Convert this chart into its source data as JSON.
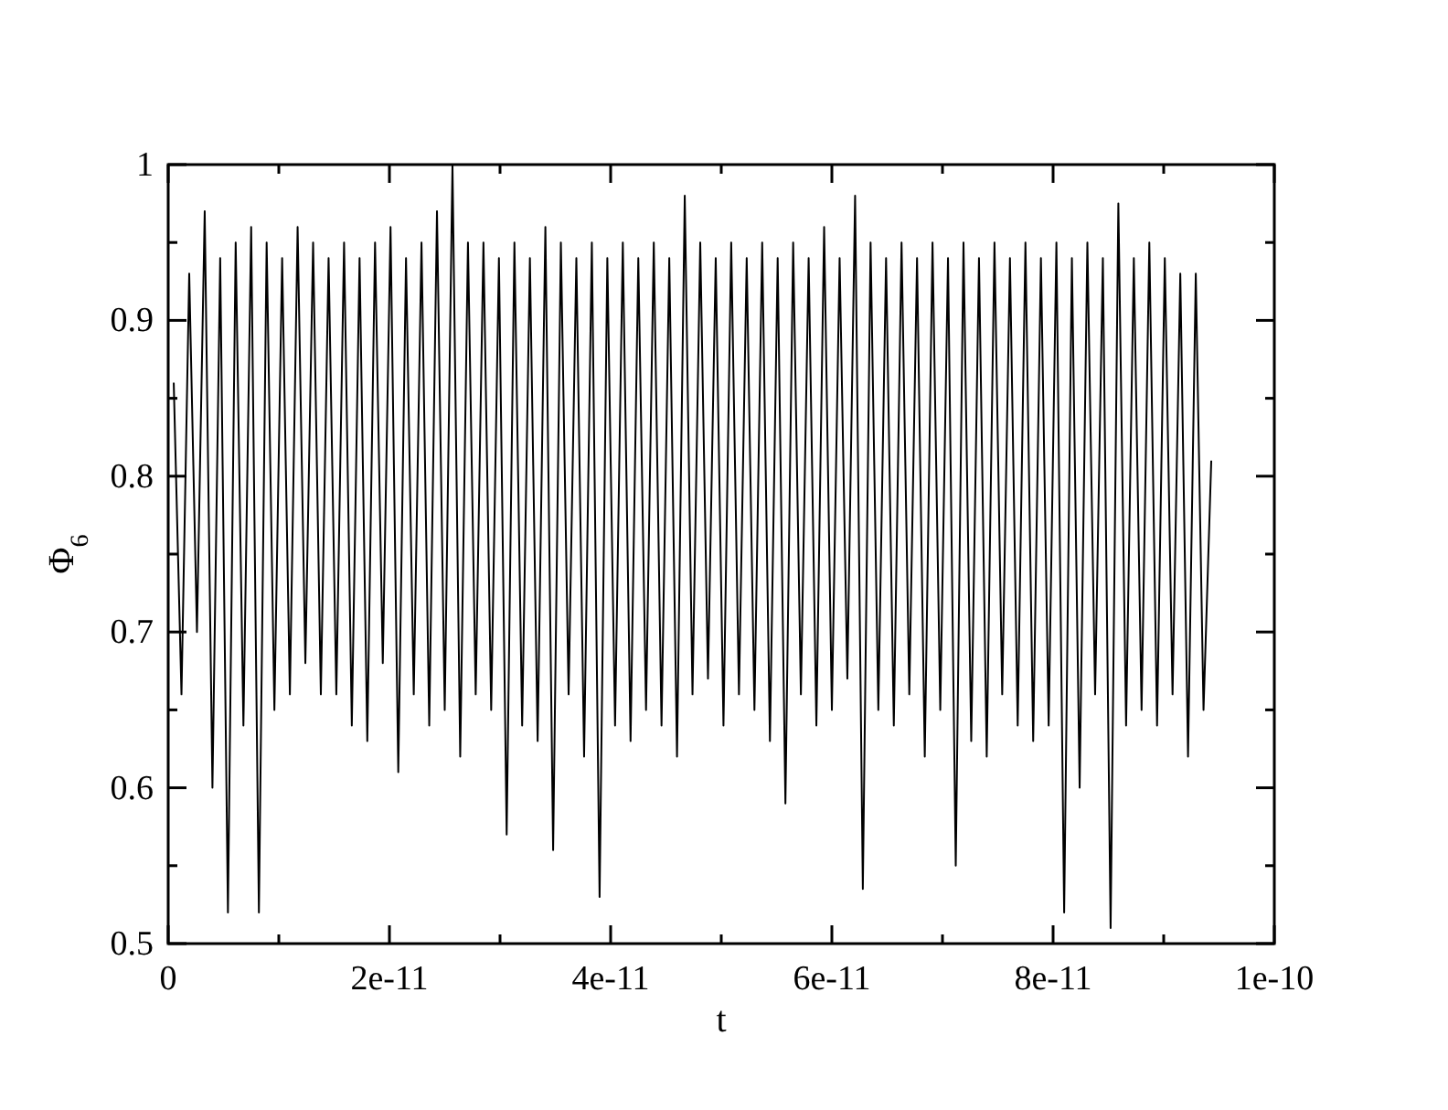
{
  "chart_data": {
    "type": "line",
    "xlabel": "t",
    "ylabel": "Φ$_{6}$",
    "xlim": [
      0,
      1e-10
    ],
    "ylim": [
      0.5,
      1
    ],
    "xticks": [
      {
        "value": 0,
        "label": "0"
      },
      {
        "value": 1e-11,
        "label": null
      },
      {
        "value": 2e-11,
        "label": "2e-11"
      },
      {
        "value": 3e-11,
        "label": null
      },
      {
        "value": 4e-11,
        "label": "4e-11"
      },
      {
        "value": 5e-11,
        "label": null
      },
      {
        "value": 6e-11,
        "label": "6e-11"
      },
      {
        "value": 7e-11,
        "label": null
      },
      {
        "value": 8e-11,
        "label": "8e-11"
      },
      {
        "value": 9e-11,
        "label": null
      },
      {
        "value": 1e-10,
        "label": "1e-10"
      }
    ],
    "yticks": [
      0.5,
      {
        "value": 0.55,
        "label": null
      },
      0.6,
      {
        "value": 0.65,
        "label": null
      },
      0.7,
      {
        "value": 0.75,
        "label": null
      },
      0.8,
      {
        "value": 0.85,
        "label": null
      },
      0.9,
      {
        "value": 0.95,
        "label": null
      },
      1
    ],
    "series": [
      {
        "color": "#000000",
        "x": [
          5e-13,
          1.2e-12,
          1.9e-12,
          2.6e-12,
          3.3e-12,
          4e-12,
          4.7e-12,
          5.4e-12,
          6.1e-12,
          6.8e-12,
          7.5e-12,
          8.2e-12,
          8.9e-12,
          9.6e-12,
          1.03e-11,
          1.1e-11,
          1.17e-11,
          1.24e-11,
          1.31e-11,
          1.38e-11,
          1.45e-11,
          1.52e-11,
          1.59e-11,
          1.66e-11,
          1.73e-11,
          1.8e-11,
          1.87e-11,
          1.94e-11,
          2.01e-11,
          2.08e-11,
          2.15e-11,
          2.22e-11,
          2.29e-11,
          2.36e-11,
          2.43e-11,
          2.5e-11,
          2.57e-11,
          2.64e-11,
          2.71e-11,
          2.78e-11,
          2.85e-11,
          2.92e-11,
          2.99e-11,
          3.06e-11,
          3.13e-11,
          3.2e-11,
          3.27e-11,
          3.34e-11,
          3.41e-11,
          3.48e-11,
          3.55e-11,
          3.62e-11,
          3.69e-11,
          3.76e-11,
          3.83e-11,
          3.9e-11,
          3.97e-11,
          4.04e-11,
          4.11e-11,
          4.18e-11,
          4.25e-11,
          4.32e-11,
          4.39e-11,
          4.46e-11,
          4.53e-11,
          4.6e-11,
          4.67e-11,
          4.74e-11,
          4.81e-11,
          4.88e-11,
          4.95e-11,
          5.02e-11,
          5.09e-11,
          5.16e-11,
          5.23e-11,
          5.3e-11,
          5.37e-11,
          5.44e-11,
          5.51e-11,
          5.58e-11,
          5.65e-11,
          5.72e-11,
          5.79e-11,
          5.86e-11,
          5.93e-11,
          6e-11,
          6.07e-11,
          6.14e-11,
          6.21e-11,
          6.28e-11,
          6.35e-11,
          6.42e-11,
          6.49e-11,
          6.56e-11,
          6.63e-11,
          6.7e-11,
          6.77e-11,
          6.84e-11,
          6.91e-11,
          6.98e-11,
          7.05e-11,
          7.12e-11,
          7.19e-11,
          7.26e-11,
          7.33e-11,
          7.4e-11,
          7.47e-11,
          7.54e-11,
          7.61e-11,
          7.68e-11,
          7.75e-11,
          7.82e-11,
          7.89e-11,
          7.96e-11,
          8.03e-11,
          8.1e-11,
          8.17e-11,
          8.24e-11,
          8.31e-11,
          8.38e-11,
          8.45e-11,
          8.52e-11,
          8.59e-11,
          8.66e-11,
          8.73e-11,
          8.8e-11,
          8.87e-11,
          8.94e-11,
          9.01e-11,
          9.08e-11,
          9.15e-11,
          9.22e-11,
          9.29e-11,
          9.36e-11,
          9.43e-11
        ],
        "values": [
          0.86,
          0.66,
          0.93,
          0.7,
          0.97,
          0.6,
          0.94,
          0.52,
          0.95,
          0.64,
          0.96,
          0.52,
          0.95,
          0.65,
          0.94,
          0.66,
          0.96,
          0.68,
          0.95,
          0.66,
          0.94,
          0.66,
          0.95,
          0.64,
          0.94,
          0.63,
          0.95,
          0.68,
          0.96,
          0.61,
          0.94,
          0.66,
          0.95,
          0.64,
          0.97,
          0.65,
          1.0,
          0.62,
          0.95,
          0.66,
          0.95,
          0.65,
          0.94,
          0.57,
          0.95,
          0.64,
          0.94,
          0.63,
          0.96,
          0.56,
          0.95,
          0.66,
          0.94,
          0.62,
          0.95,
          0.53,
          0.94,
          0.64,
          0.95,
          0.63,
          0.94,
          0.65,
          0.95,
          0.64,
          0.94,
          0.62,
          0.98,
          0.66,
          0.95,
          0.67,
          0.94,
          0.64,
          0.95,
          0.66,
          0.94,
          0.65,
          0.95,
          0.63,
          0.94,
          0.59,
          0.95,
          0.66,
          0.94,
          0.64,
          0.96,
          0.65,
          0.94,
          0.67,
          0.98,
          0.535,
          0.95,
          0.65,
          0.94,
          0.64,
          0.95,
          0.66,
          0.94,
          0.62,
          0.95,
          0.65,
          0.94,
          0.55,
          0.95,
          0.63,
          0.94,
          0.62,
          0.95,
          0.66,
          0.94,
          0.64,
          0.95,
          0.63,
          0.94,
          0.64,
          0.95,
          0.52,
          0.94,
          0.6,
          0.95,
          0.66,
          0.94,
          0.51,
          0.975,
          0.64,
          0.94,
          0.65,
          0.95,
          0.64,
          0.94,
          0.66,
          0.93,
          0.62,
          0.93,
          0.65,
          0.81
        ]
      }
    ]
  }
}
